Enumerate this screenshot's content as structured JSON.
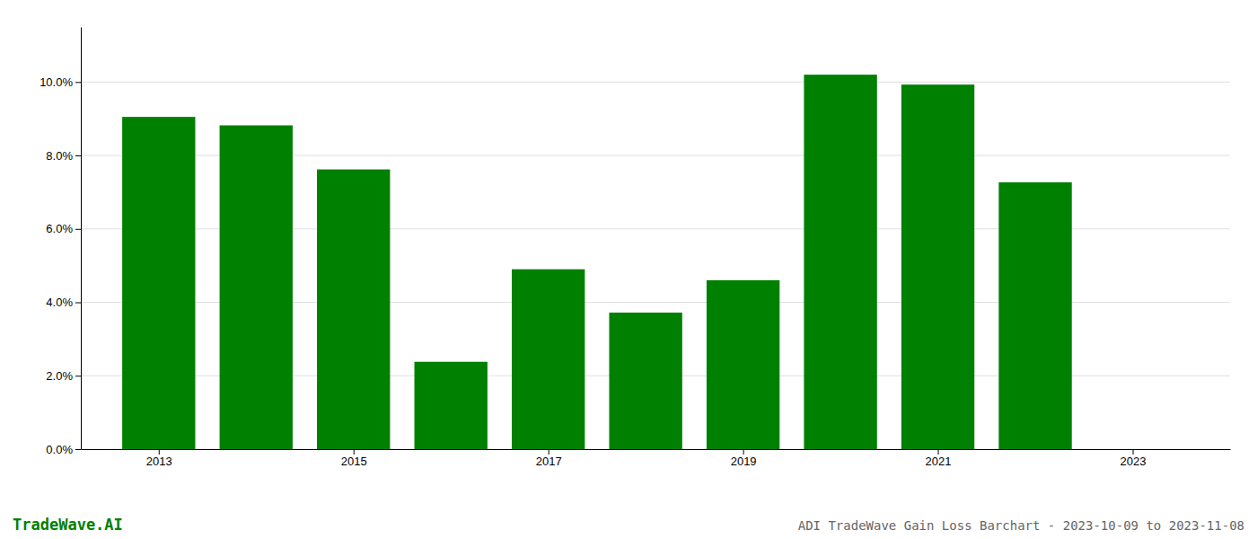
{
  "chart_data": {
    "type": "bar",
    "title": "ADI TradeWave Gain Loss Barchart - 2023-10-09 to 2023-11-08",
    "annotations": [
      "TradeWave.AI"
    ],
    "x": [
      2013,
      2014,
      2015,
      2016,
      2017,
      2018,
      2019,
      2020,
      2021,
      2022
    ],
    "values": [
      0.0905,
      0.0882,
      0.0762,
      0.0238,
      0.049,
      0.0372,
      0.046,
      0.102,
      0.0993,
      0.0727
    ],
    "color": "#008000",
    "xlim": [
      2012.2,
      2024.0
    ],
    "xticks": [
      2013,
      2015,
      2017,
      2019,
      2021,
      2023
    ],
    "ylim": [
      0,
      0.115
    ],
    "yticks": [
      {
        "value": 0.0,
        "label": "0.0%"
      },
      {
        "value": 0.02,
        "label": "2.0%"
      },
      {
        "value": 0.04,
        "label": "4.0%"
      },
      {
        "value": 0.06,
        "label": "6.0%"
      },
      {
        "value": 0.08,
        "label": "8.0%"
      },
      {
        "value": 0.1,
        "label": "10.0%"
      }
    ],
    "grid": true
  }
}
